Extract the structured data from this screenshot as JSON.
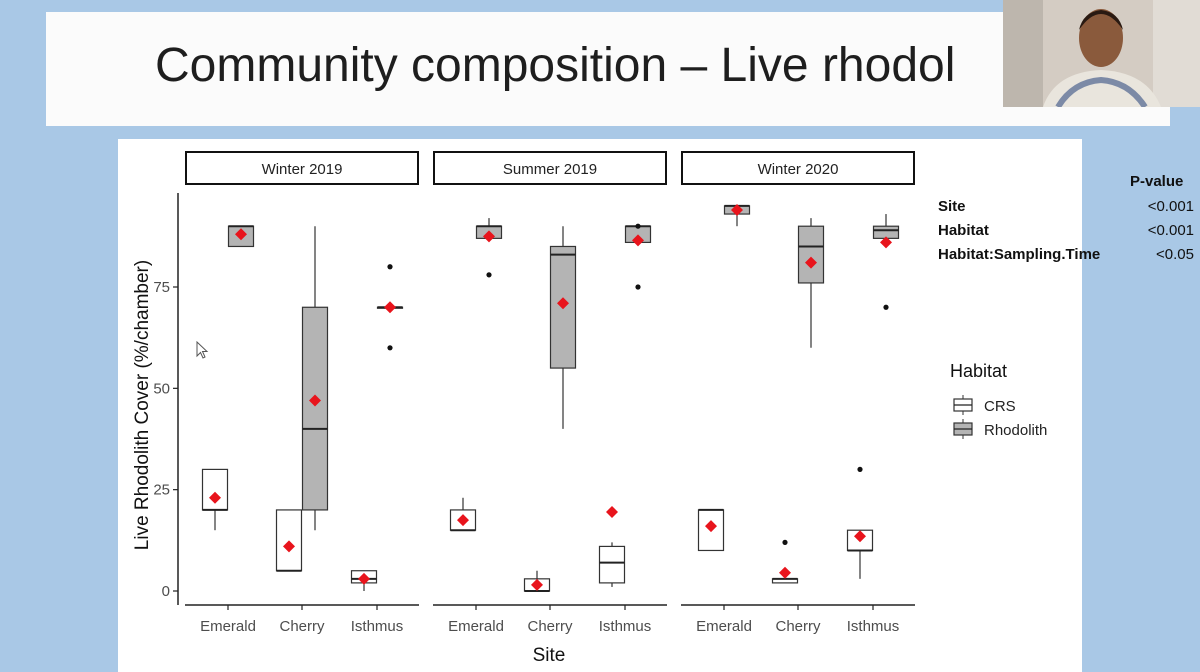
{
  "slide": {
    "title": "Community composition – Live rhodol"
  },
  "pvalue_table": {
    "header": "P-value",
    "rows": [
      {
        "label": "Site",
        "value": "<0.001"
      },
      {
        "label": "Habitat",
        "value": "<0.001"
      },
      {
        "label": "Habitat:Sampling.Time",
        "value": "<0.05"
      }
    ]
  },
  "chart_data": {
    "type": "box",
    "ylabel": "Live Rhodolith Cover (%/chamber)",
    "xlabel": "Site",
    "ylim": [
      -5,
      100
    ],
    "yticks": [
      0,
      25,
      50,
      75
    ],
    "grid": false,
    "legend": {
      "title": "Habitat",
      "position": "right",
      "entries": [
        {
          "name": "CRS",
          "fill": "#ffffff"
        },
        {
          "name": "Rhodolith",
          "fill": "#b4b4b4"
        }
      ]
    },
    "colors": {
      "mean_marker": "#e8141c",
      "rhodolith_fill": "#b4b4b4",
      "crs_fill": "#ffffff"
    },
    "facets": [
      {
        "label": "Winter 2019",
        "categories": [
          "Emerald",
          "Cherry",
          "Isthmus"
        ],
        "boxes": [
          {
            "site": "Emerald",
            "habitat": "CRS",
            "lw": 15,
            "q1": 20,
            "median": 20,
            "q3": 30,
            "uw": 30,
            "mean": 23,
            "outliers": []
          },
          {
            "site": "Emerald",
            "habitat": "Rhodolith",
            "lw": 85,
            "q1": 85,
            "median": 90,
            "q3": 90,
            "uw": 90,
            "mean": 88,
            "outliers": []
          },
          {
            "site": "Cherry",
            "habitat": "CRS",
            "lw": 5,
            "q1": 5,
            "median": 5,
            "q3": 20,
            "uw": 20,
            "mean": 11,
            "outliers": []
          },
          {
            "site": "Cherry",
            "habitat": "Rhodolith",
            "lw": 15,
            "q1": 20,
            "median": 40,
            "q3": 70,
            "uw": 90,
            "mean": 47,
            "outliers": []
          },
          {
            "site": "Isthmus",
            "habitat": "CRS",
            "lw": 0,
            "q1": 2,
            "median": 3,
            "q3": 5,
            "uw": 5,
            "mean": 3,
            "outliers": []
          },
          {
            "site": "Isthmus",
            "habitat": "Rhodolith",
            "lw": 70,
            "q1": 70,
            "median": 70,
            "q3": 70,
            "uw": 70,
            "mean": 70,
            "outliers": [
              60,
              80
            ]
          }
        ]
      },
      {
        "label": "Summer 2019",
        "categories": [
          "Emerald",
          "Cherry",
          "Isthmus"
        ],
        "boxes": [
          {
            "site": "Emerald",
            "habitat": "CRS",
            "lw": 15,
            "q1": 15,
            "median": 15,
            "q3": 20,
            "uw": 23,
            "mean": 17.5,
            "outliers": []
          },
          {
            "site": "Emerald",
            "habitat": "Rhodolith",
            "lw": 87,
            "q1": 87,
            "median": 90,
            "q3": 90,
            "uw": 92,
            "mean": 87.5,
            "outliers": [
              78
            ]
          },
          {
            "site": "Cherry",
            "habitat": "CRS",
            "lw": 0,
            "q1": 0,
            "median": 0,
            "q3": 3,
            "uw": 5,
            "mean": 1.5,
            "outliers": []
          },
          {
            "site": "Cherry",
            "habitat": "Rhodolith",
            "lw": 40,
            "q1": 55,
            "median": 83,
            "q3": 85,
            "uw": 90,
            "mean": 71,
            "outliers": []
          },
          {
            "site": "Isthmus",
            "habitat": "CRS",
            "lw": 1,
            "q1": 2,
            "median": 7,
            "q3": 11,
            "uw": 12,
            "mean": 19.5,
            "outliers": []
          },
          {
            "site": "Isthmus",
            "habitat": "Rhodolith",
            "lw": 86,
            "q1": 86,
            "median": 90,
            "q3": 90,
            "uw": 90,
            "mean": 86.5,
            "outliers": [
              75,
              90
            ]
          }
        ]
      },
      {
        "label": "Winter 2020",
        "categories": [
          "Emerald",
          "Cherry",
          "Isthmus"
        ],
        "boxes": [
          {
            "site": "Emerald",
            "habitat": "CRS",
            "lw": 10,
            "q1": 10,
            "median": 20,
            "q3": 20,
            "uw": 20,
            "mean": 16,
            "outliers": []
          },
          {
            "site": "Emerald",
            "habitat": "Rhodolith",
            "lw": 90,
            "q1": 93,
            "median": 95,
            "q3": 95,
            "uw": 95,
            "mean": 94,
            "outliers": []
          },
          {
            "site": "Cherry",
            "habitat": "CRS",
            "lw": 2,
            "q1": 2,
            "median": 3,
            "q3": 3,
            "uw": 3,
            "mean": 4.5,
            "outliers": [
              12
            ]
          },
          {
            "site": "Cherry",
            "habitat": "Rhodolith",
            "lw": 60,
            "q1": 76,
            "median": 85,
            "q3": 90,
            "uw": 92,
            "mean": 81,
            "outliers": []
          },
          {
            "site": "Isthmus",
            "habitat": "CRS",
            "lw": 3,
            "q1": 10,
            "median": 10,
            "q3": 15,
            "uw": 15,
            "mean": 13.5,
            "outliers": [
              30
            ]
          },
          {
            "site": "Isthmus",
            "habitat": "Rhodolith",
            "lw": 87,
            "q1": 87,
            "median": 89,
            "q3": 90,
            "uw": 93,
            "mean": 86,
            "outliers": [
              70
            ]
          }
        ]
      }
    ]
  }
}
